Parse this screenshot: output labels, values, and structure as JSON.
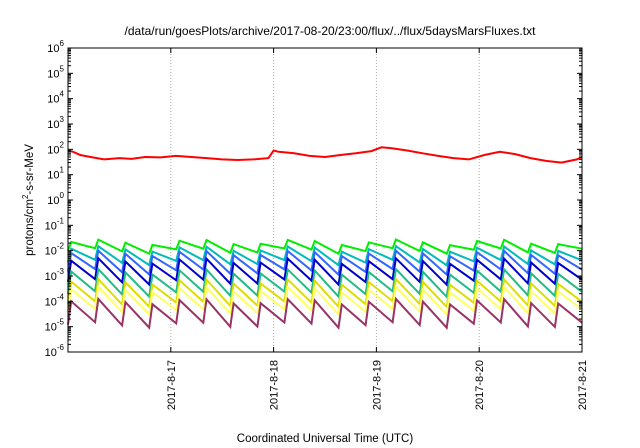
{
  "chart_data": {
    "type": "line",
    "title": "/data/run/goesPlots/archive/2017-08-20/23:00/flux/../flux/5daysMarsFluxes.txt",
    "xlabel": "Coordinated Universal Time (UTC)",
    "ylabel_pre": "protons/cm",
    "ylabel_sup": "2",
    "ylabel_post": "-s-sr-MeV",
    "x_range": [
      "2017-08-16",
      "2017-08-21"
    ],
    "x_ticks": [
      "2017-8-17",
      "2017-8-18",
      "2017-8-19",
      "2017-8-20",
      "2017-8-21"
    ],
    "y_scale": "log",
    "y_range": [
      1e-06,
      1000000.0
    ],
    "y_tick_exponents": [
      -6,
      -5,
      -4,
      -3,
      -2,
      -1,
      0,
      1,
      2,
      3,
      4,
      5,
      6
    ],
    "y_tick_base": "10",
    "grid": true,
    "series": [
      {
        "color": "#ff0000",
        "sawtooth": false,
        "x_days": [
          0,
          0.05,
          0.12,
          0.22,
          0.35,
          0.5,
          0.62,
          0.75,
          0.9,
          1.05,
          1.2,
          1.35,
          1.5,
          1.65,
          1.8,
          1.95,
          2.0,
          2.05,
          2.2,
          2.35,
          2.5,
          2.65,
          2.8,
          2.95,
          3.05,
          3.15,
          3.3,
          3.45,
          3.6,
          3.75,
          3.9,
          4.05,
          4.2,
          4.35,
          4.5,
          4.65,
          4.8,
          4.95,
          5.0
        ],
        "y": [
          90,
          80,
          60,
          50,
          40,
          45,
          42,
          50,
          48,
          55,
          50,
          45,
          40,
          38,
          40,
          45,
          90,
          80,
          70,
          55,
          50,
          60,
          70,
          85,
          120,
          110,
          90,
          70,
          55,
          45,
          40,
          60,
          80,
          65,
          45,
          35,
          30,
          40,
          50
        ]
      },
      {
        "color": "#00ee00",
        "sawtooth": true,
        "peak": 0.022,
        "trough": 0.01
      },
      {
        "color": "#00bbbb",
        "sawtooth": true,
        "peak": 0.012,
        "trough": 0.0035
      },
      {
        "color": "#3366ff",
        "sawtooth": true,
        "peak": 0.008,
        "trough": 0.0015
      },
      {
        "color": "#0000cc",
        "sawtooth": true,
        "peak": 0.004,
        "trough": 0.0006
      },
      {
        "color": "#22bb88",
        "sawtooth": true,
        "peak": 0.0015,
        "trough": 0.0002
      },
      {
        "color": "#dddd00",
        "sawtooth": true,
        "peak": 0.0006,
        "trough": 8e-05
      },
      {
        "color": "#ffff66",
        "sawtooth": true,
        "peak": 0.0003,
        "trough": 4e-05
      },
      {
        "color": "#993366",
        "sawtooth": true,
        "peak": 0.0001,
        "trough": 1.2e-05
      }
    ]
  }
}
